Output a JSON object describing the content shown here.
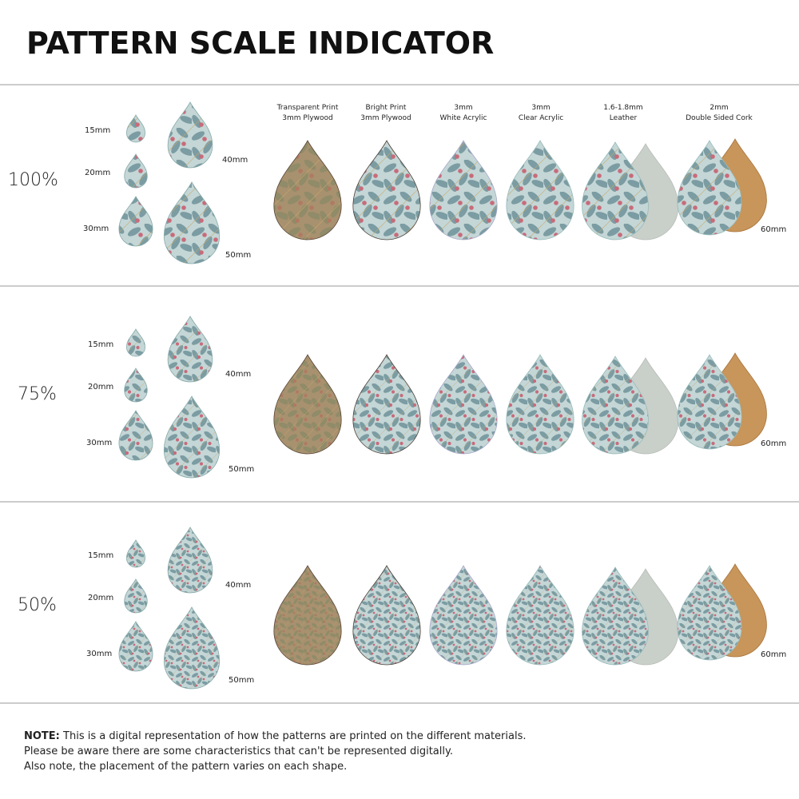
{
  "title": "PATTERN SCALE INDICATOR",
  "materials": [
    {
      "line1": "Transparent Print",
      "line2": "3mm Plywood"
    },
    {
      "line1": "Bright Print",
      "line2": "3mm Plywood"
    },
    {
      "line1": "3mm",
      "line2": "White Acrylic"
    },
    {
      "line1": "3mm",
      "line2": "Clear Acrylic"
    },
    {
      "line1": "1.6-1.8mm",
      "line2": "Leather"
    },
    {
      "line1": "2mm",
      "line2": "Double Sided Cork"
    }
  ],
  "sections": [
    {
      "scale": "100%",
      "sizes": [
        "15mm",
        "20mm",
        "30mm",
        "40mm",
        "50mm"
      ],
      "large_size": "60mm"
    },
    {
      "scale": "75%",
      "sizes": [
        "15mm",
        "20mm",
        "30mm",
        "40mm",
        "50mm"
      ],
      "large_size": "60mm"
    },
    {
      "scale": "50%",
      "sizes": [
        "15mm",
        "20mm",
        "30mm",
        "40mm",
        "50mm"
      ],
      "large_size": "60mm"
    }
  ],
  "note": {
    "label": "NOTE:",
    "lines": [
      "This is a digital representation of how the patterns are printed on the different materials.",
      "Please be aware there are some characteristics that can't be represented digitally.",
      "Also note, the placement of the pattern varies on each shape."
    ]
  }
}
